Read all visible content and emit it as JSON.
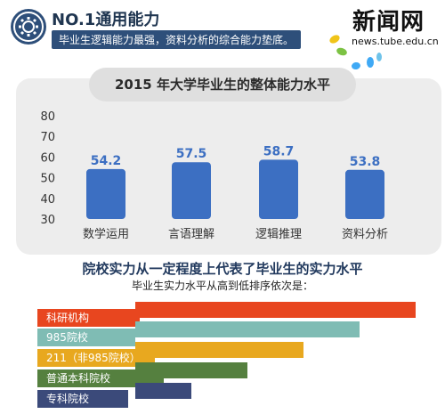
{
  "header": {
    "title": "NO.1通用能力",
    "subtitle": "毕业生逻辑能力最强，资料分析的综合能力垫底。"
  },
  "watermark": {
    "brand": "新闻网",
    "url": "news.tube.edu.cn"
  },
  "chart_data": [
    {
      "type": "bar",
      "title": "2015 年大学毕业生的整体能力水平",
      "categories": [
        "数学运用",
        "言语理解",
        "逻辑推理",
        "资料分析"
      ],
      "values": [
        54.2,
        57.5,
        58.7,
        53.8
      ],
      "value_labels": [
        "54.2",
        "57.5",
        "58.7",
        "53.8"
      ],
      "ylim": [
        30,
        80
      ],
      "yticks": [
        "30",
        "40",
        "50",
        "60",
        "70",
        "80"
      ],
      "xlabel": "",
      "ylabel": "",
      "bar_color": "#3c6fc2",
      "value_label_color": "#3c6fc2",
      "grid": false
    },
    {
      "type": "bar",
      "orientation": "horizontal",
      "title": "院校实力从一定程度上代表了毕业生的实力水平",
      "subtitle": "毕业生实力水平从高到低排序依次是：",
      "categories": [
        "科研机构",
        "985院校",
        "211（非985院校）",
        "普通本科院校",
        "专科院校"
      ],
      "values": [
        5,
        4,
        3,
        2,
        1
      ],
      "bar_colors": [
        "#e8461f",
        "#7fbcb4",
        "#e8a81f",
        "#55803f",
        "#3b4a7a"
      ],
      "label_colors": [
        "#e8461f",
        "#7fbcb4",
        "#e8a81f",
        "#55803f",
        "#3b4a7a"
      ],
      "grid": false
    }
  ]
}
